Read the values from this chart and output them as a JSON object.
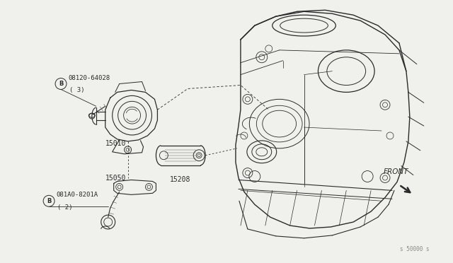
{
  "background_color": "#f0f0ec",
  "line_color": "#2a2a2a",
  "label_color": "#2a2a2a",
  "labels": {
    "part1_num": "08120-64028",
    "part1_qty": "( 3)",
    "part1_id": "15010",
    "part2_num": "081A0-8201A",
    "part2_qty": "( 2)",
    "part2_id": "15050",
    "part3_id": "15208",
    "front": "FRONT",
    "diagram_num": "s 50000 s"
  },
  "font_size": 6.5,
  "fig_width": 6.4,
  "fig_height": 3.72,
  "dpi": 100
}
